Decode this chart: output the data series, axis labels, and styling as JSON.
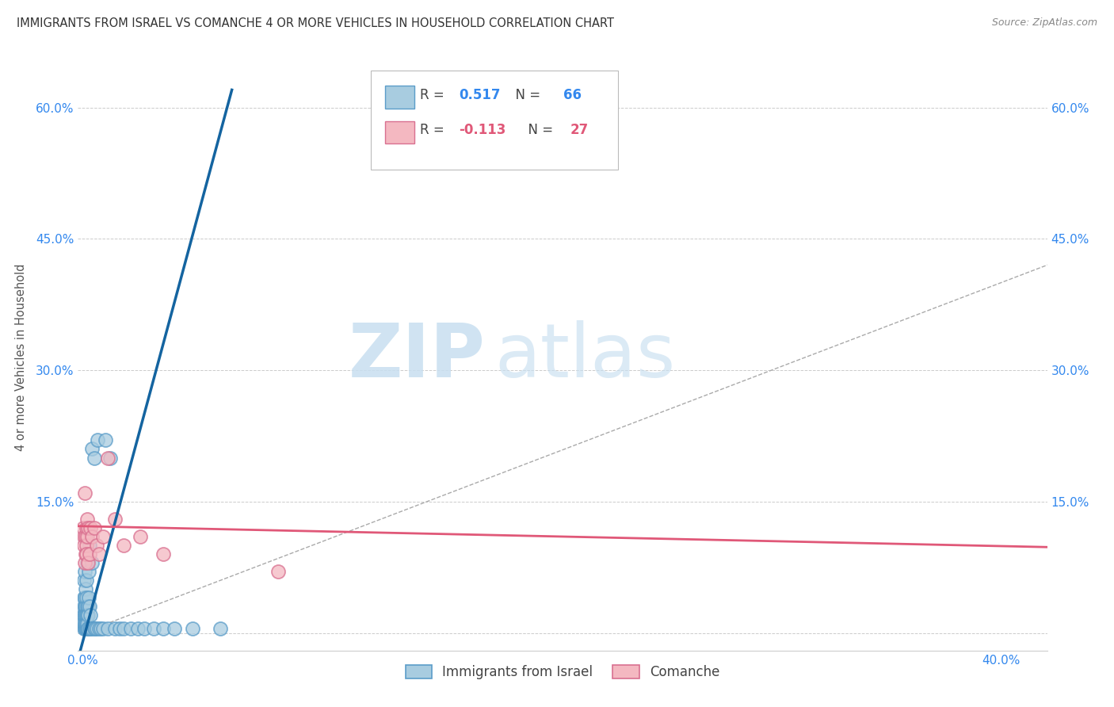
{
  "title": "IMMIGRANTS FROM ISRAEL VS COMANCHE 4 OR MORE VEHICLES IN HOUSEHOLD CORRELATION CHART",
  "source": "Source: ZipAtlas.com",
  "ylabel": "4 or more Vehicles in Household",
  "xlim": [
    -0.002,
    0.42
  ],
  "ylim": [
    -0.02,
    0.65
  ],
  "xlabel_tick_vals": [
    0.0,
    0.1,
    0.2,
    0.3,
    0.4
  ],
  "xlabel_ticks": [
    "0.0%",
    "",
    "",
    "",
    "40.0%"
  ],
  "ylabel_tick_vals": [
    0.0,
    0.15,
    0.3,
    0.45,
    0.6
  ],
  "ylabel_ticks": [
    "",
    "15.0%",
    "30.0%",
    "45.0%",
    "60.0%"
  ],
  "ylabel_right_ticks": [
    "",
    "15.0%",
    "30.0%",
    "45.0%",
    "60.0%"
  ],
  "blue_R": "0.517",
  "blue_N": "66",
  "pink_R": "-0.113",
  "pink_N": "27",
  "legend_labels": [
    "Immigrants from Israel",
    "Comanche"
  ],
  "blue_color": "#a8cce0",
  "blue_edge_color": "#5b9dc9",
  "pink_color": "#f4b8c1",
  "pink_edge_color": "#d97090",
  "blue_line_color": "#1464a0",
  "pink_line_color": "#e05878",
  "diag_line_color": "#aaaaaa",
  "watermark_zip": "ZIP",
  "watermark_atlas": "atlas",
  "title_fontsize": 10.5,
  "source_fontsize": 9,
  "blue_scatter_x": [
    0.0003,
    0.0004,
    0.0005,
    0.0006,
    0.0006,
    0.0007,
    0.0007,
    0.0008,
    0.0008,
    0.0009,
    0.0009,
    0.001,
    0.001,
    0.0011,
    0.0012,
    0.0012,
    0.0013,
    0.0013,
    0.0014,
    0.0015,
    0.0015,
    0.0016,
    0.0017,
    0.0018,
    0.0018,
    0.0019,
    0.002,
    0.002,
    0.002,
    0.0021,
    0.0022,
    0.0023,
    0.0024,
    0.0025,
    0.0026,
    0.0027,
    0.003,
    0.003,
    0.0032,
    0.0033,
    0.0035,
    0.004,
    0.004,
    0.0042,
    0.005,
    0.005,
    0.0055,
    0.006,
    0.0065,
    0.007,
    0.008,
    0.009,
    0.01,
    0.011,
    0.012,
    0.014,
    0.016,
    0.018,
    0.021,
    0.024,
    0.027,
    0.031,
    0.035,
    0.04,
    0.048,
    0.06
  ],
  "blue_scatter_y": [
    0.02,
    0.01,
    0.03,
    0.005,
    0.04,
    0.02,
    0.06,
    0.01,
    0.03,
    0.005,
    0.04,
    0.01,
    0.07,
    0.02,
    0.005,
    0.03,
    0.01,
    0.05,
    0.02,
    0.005,
    0.04,
    0.02,
    0.005,
    0.01,
    0.06,
    0.03,
    0.005,
    0.02,
    0.08,
    0.01,
    0.005,
    0.03,
    0.02,
    0.005,
    0.07,
    0.04,
    0.005,
    0.1,
    0.03,
    0.02,
    0.005,
    0.08,
    0.21,
    0.005,
    0.2,
    0.005,
    0.005,
    0.005,
    0.22,
    0.005,
    0.005,
    0.005,
    0.22,
    0.005,
    0.2,
    0.005,
    0.005,
    0.005,
    0.005,
    0.005,
    0.005,
    0.005,
    0.005,
    0.005,
    0.005,
    0.005
  ],
  "pink_scatter_x": [
    0.0003,
    0.0005,
    0.0007,
    0.001,
    0.001,
    0.0012,
    0.0013,
    0.0015,
    0.0016,
    0.0018,
    0.002,
    0.002,
    0.0023,
    0.0025,
    0.003,
    0.0035,
    0.004,
    0.005,
    0.006,
    0.007,
    0.009,
    0.011,
    0.014,
    0.018,
    0.025,
    0.035,
    0.085
  ],
  "pink_scatter_y": [
    0.12,
    0.11,
    0.1,
    0.16,
    0.08,
    0.09,
    0.11,
    0.12,
    0.1,
    0.09,
    0.11,
    0.13,
    0.08,
    0.12,
    0.09,
    0.12,
    0.11,
    0.12,
    0.1,
    0.09,
    0.11,
    0.2,
    0.13,
    0.1,
    0.11,
    0.09,
    0.07
  ]
}
